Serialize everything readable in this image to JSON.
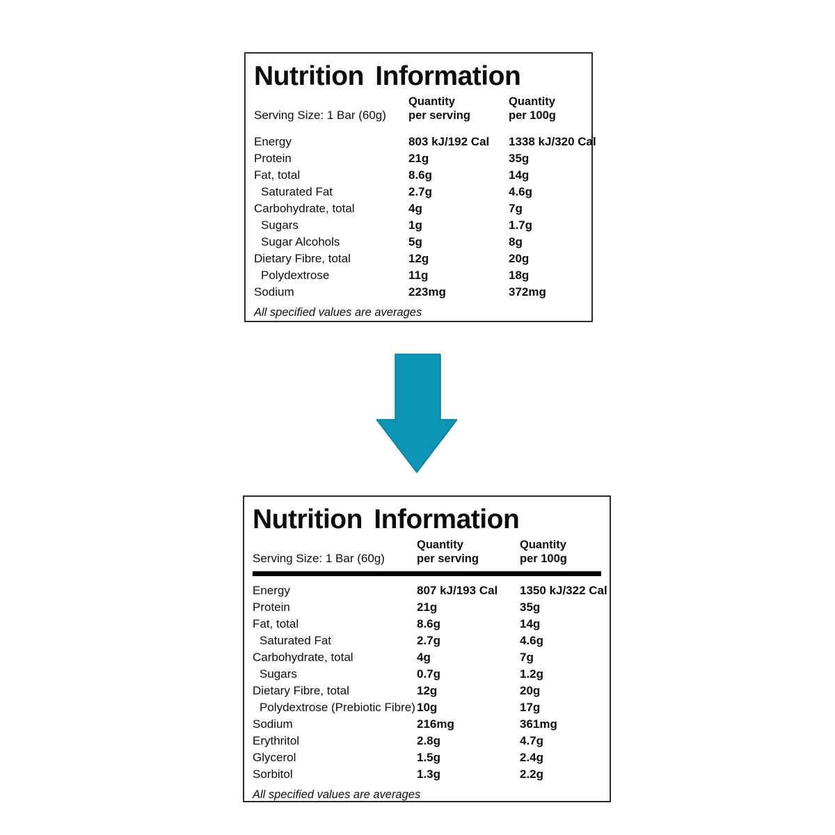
{
  "arrow": {
    "name": "down-arrow",
    "color": "#0e95b5"
  },
  "panels": [
    {
      "title": "Nutrition Information",
      "serving_size": "Serving Size: 1 Bar (60g)",
      "col_headers": [
        {
          "line1": "Quantity",
          "line2": "per serving"
        },
        {
          "line1": "Quantity",
          "line2": "per 100g"
        }
      ],
      "rows": [
        {
          "label": "Energy",
          "indent": false,
          "per_serving": "803 kJ/192 Cal",
          "per_100g": "1338 kJ/320 Cal"
        },
        {
          "label": "Protein",
          "indent": false,
          "per_serving": "21g",
          "per_100g": "35g"
        },
        {
          "label": "Fat, total",
          "indent": false,
          "per_serving": "8.6g",
          "per_100g": "14g"
        },
        {
          "label": "Saturated Fat",
          "indent": true,
          "per_serving": "2.7g",
          "per_100g": "4.6g"
        },
        {
          "label": "Carbohydrate, total",
          "indent": false,
          "per_serving": "4g",
          "per_100g": "7g"
        },
        {
          "label": "Sugars",
          "indent": true,
          "per_serving": "1g",
          "per_100g": "1.7g"
        },
        {
          "label": "Sugar Alcohols",
          "indent": true,
          "per_serving": "5g",
          "per_100g": "8g"
        },
        {
          "label": "Dietary Fibre, total",
          "indent": false,
          "per_serving": "12g",
          "per_100g": "20g"
        },
        {
          "label": "Polydextrose",
          "indent": true,
          "per_serving": "11g",
          "per_100g": "18g"
        },
        {
          "label": "Sodium",
          "indent": false,
          "per_serving": "223mg",
          "per_100g": "372mg"
        }
      ],
      "footnote": "All specified values are averages"
    },
    {
      "title": "Nutrition Information",
      "serving_size": "Serving Size: 1 Bar (60g)",
      "col_headers": [
        {
          "line1": "Quantity",
          "line2": "per serving"
        },
        {
          "line1": "Quantity",
          "line2": "per 100g"
        }
      ],
      "rows": [
        {
          "label": "Energy",
          "indent": false,
          "per_serving": "807 kJ/193 Cal",
          "per_100g": "1350 kJ/322 Cal"
        },
        {
          "label": "Protein",
          "indent": false,
          "per_serving": "21g",
          "per_100g": "35g"
        },
        {
          "label": "Fat, total",
          "indent": false,
          "per_serving": "8.6g",
          "per_100g": "14g"
        },
        {
          "label": "Saturated Fat",
          "indent": true,
          "per_serving": "2.7g",
          "per_100g": "4.6g"
        },
        {
          "label": "Carbohydrate, total",
          "indent": false,
          "per_serving": "4g",
          "per_100g": "7g"
        },
        {
          "label": "Sugars",
          "indent": true,
          "per_serving": "0.7g",
          "per_100g": "1.2g"
        },
        {
          "label": "Dietary Fibre, total",
          "indent": false,
          "per_serving": "12g",
          "per_100g": "20g"
        },
        {
          "label": "Polydextrose (Prebiotic Fibre)",
          "indent": true,
          "per_serving": "10g",
          "per_100g": "17g"
        },
        {
          "label": "Sodium",
          "indent": false,
          "per_serving": "216mg",
          "per_100g": "361mg"
        },
        {
          "label": "Erythritol",
          "indent": false,
          "per_serving": "2.8g",
          "per_100g": "4.7g"
        },
        {
          "label": "Glycerol",
          "indent": false,
          "per_serving": "1.5g",
          "per_100g": "2.4g"
        },
        {
          "label": "Sorbitol",
          "indent": false,
          "per_serving": "1.3g",
          "per_100g": "2.2g"
        }
      ],
      "footnote": "All specified values are averages"
    }
  ]
}
